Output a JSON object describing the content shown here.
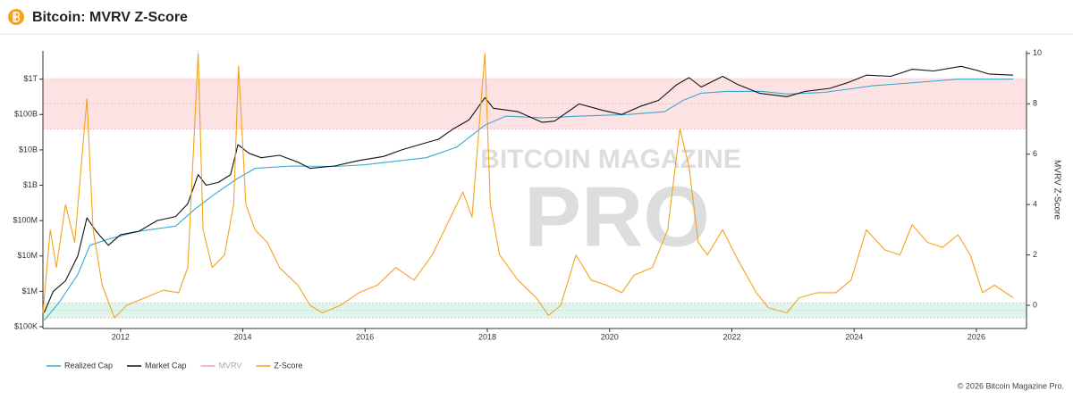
{
  "chart_data": {
    "type": "line",
    "title": "Bitcoin: MVRV Z-Score",
    "y2_label": "MVRV Z-Score",
    "watermark": [
      "BITCOIN MAGAZINE",
      "PRO"
    ],
    "footer": "© 2026 Bitcoin Magazine Pro.",
    "xlim": [
      2010.73,
      2026.82
    ],
    "xticks": [
      2012,
      2014,
      2016,
      2018,
      2020,
      2022,
      2024,
      2026
    ],
    "ylim": [
      89000,
      6300000000000
    ],
    "log_y": true,
    "yticks": [
      {
        "value": 100000,
        "label": "$100K"
      },
      {
        "value": 1000000,
        "label": "$1M"
      },
      {
        "value": 10000000,
        "label": "$10M"
      },
      {
        "value": 100000000,
        "label": "$100M"
      },
      {
        "value": 1000000000,
        "label": "$1B"
      },
      {
        "value": 10000000000,
        "label": "$10B"
      },
      {
        "value": 100000000000,
        "label": "$100B"
      },
      {
        "value": 1000000000000,
        "label": "$1T"
      }
    ],
    "y2lim": [
      -0.92,
      10.1
    ],
    "y2ticks": [
      0,
      2,
      4,
      6,
      8,
      10
    ],
    "bands": [
      {
        "axis": "y2",
        "from": 7,
        "to": 9,
        "color": "#fde2e4"
      },
      {
        "axis": "y2",
        "from": -0.5,
        "to": 0.1,
        "color": "#dff5ec"
      }
    ],
    "series": [
      {
        "name": "Realized Cap",
        "color": "#3aa8d0",
        "axis": "y",
        "x": [
          2010.75,
          2011.0,
          2011.3,
          2011.5,
          2011.8,
          2012.3,
          2012.9,
          2013.2,
          2013.5,
          2013.9,
          2014.2,
          2014.8,
          2015.5,
          2016.0,
          2016.6,
          2017.0,
          2017.5,
          2017.96,
          2018.3,
          2018.9,
          2019.5,
          2020.3,
          2020.9,
          2021.2,
          2021.5,
          2021.9,
          2022.5,
          2022.9,
          2023.5,
          2024.0,
          2024.3,
          2025.0,
          2025.7,
          2026.6
        ],
        "values": [
          150000,
          500000,
          3000000,
          20000000,
          30000000,
          50000000,
          70000000,
          200000000,
          500000000,
          1500000000,
          3000000000,
          3500000000,
          3400000000,
          3800000000,
          5000000000,
          6000000000,
          12000000000,
          50000000000,
          90000000000,
          80000000000,
          90000000000,
          100000000000,
          120000000000,
          250000000000,
          400000000000,
          450000000000,
          450000000000,
          380000000000,
          420000000000,
          550000000000,
          650000000000,
          800000000000,
          1000000000000,
          1000000000000
        ]
      },
      {
        "name": "Market Cap",
        "color": "#111111",
        "axis": "y",
        "x": [
          2010.75,
          2010.9,
          2011.1,
          2011.3,
          2011.45,
          2011.6,
          2011.8,
          2012.0,
          2012.3,
          2012.6,
          2012.9,
          2013.1,
          2013.27,
          2013.4,
          2013.6,
          2013.8,
          2013.92,
          2014.1,
          2014.3,
          2014.6,
          2014.9,
          2015.1,
          2015.5,
          2015.9,
          2016.3,
          2016.6,
          2016.95,
          2017.2,
          2017.45,
          2017.7,
          2017.96,
          2018.1,
          2018.5,
          2018.9,
          2019.1,
          2019.5,
          2019.9,
          2020.2,
          2020.5,
          2020.8,
          2021.1,
          2021.3,
          2021.5,
          2021.85,
          2022.1,
          2022.45,
          2022.9,
          2023.2,
          2023.6,
          2023.9,
          2024.2,
          2024.6,
          2024.95,
          2025.3,
          2025.75,
          2026.0,
          2026.2,
          2026.6
        ],
        "values": [
          250000,
          1000000,
          2000000,
          10000000,
          120000000,
          50000000,
          20000000,
          40000000,
          50000000,
          100000000,
          130000000,
          300000000,
          2000000000,
          1000000000,
          1200000000,
          2000000000,
          14000000000,
          8000000000,
          6000000000,
          7000000000,
          4500000000,
          3000000000,
          3500000000,
          5000000000,
          6500000000,
          10000000000,
          15000000000,
          20000000000,
          40000000000,
          70000000000,
          300000000000,
          150000000000,
          120000000000,
          60000000000,
          65000000000,
          200000000000,
          130000000000,
          100000000000,
          170000000000,
          250000000000,
          700000000000,
          1100000000000,
          600000000000,
          1200000000000,
          700000000000,
          400000000000,
          320000000000,
          450000000000,
          550000000000,
          800000000000,
          1300000000000,
          1200000000000,
          1900000000000,
          1700000000000,
          2300000000000,
          1800000000000,
          1400000000000,
          1300000000000
        ]
      },
      {
        "name": "MVRV",
        "color": "#f2a3a8",
        "visible": false
      },
      {
        "name": "Z-Score",
        "color": "#f4a21c",
        "axis": "y2",
        "x": [
          2010.73,
          2010.85,
          2010.95,
          2011.1,
          2011.25,
          2011.45,
          2011.55,
          2011.7,
          2011.9,
          2012.1,
          2012.4,
          2012.7,
          2012.95,
          2013.1,
          2013.27,
          2013.35,
          2013.5,
          2013.7,
          2013.85,
          2013.93,
          2014.05,
          2014.2,
          2014.4,
          2014.6,
          2014.9,
          2015.1,
          2015.3,
          2015.6,
          2015.9,
          2016.2,
          2016.5,
          2016.8,
          2017.1,
          2017.4,
          2017.6,
          2017.75,
          2017.96,
          2018.05,
          2018.2,
          2018.5,
          2018.8,
          2019.0,
          2019.2,
          2019.45,
          2019.7,
          2019.95,
          2020.2,
          2020.4,
          2020.7,
          2020.95,
          2021.15,
          2021.3,
          2021.45,
          2021.6,
          2021.85,
          2022.1,
          2022.4,
          2022.6,
          2022.9,
          2023.1,
          2023.4,
          2023.7,
          2023.95,
          2024.2,
          2024.5,
          2024.75,
          2024.95,
          2025.2,
          2025.45,
          2025.7,
          2025.9,
          2026.1,
          2026.3,
          2026.6
        ],
        "values": [
          -0.3,
          3,
          1.5,
          4,
          2.5,
          8.2,
          3,
          0.8,
          -0.5,
          0,
          0.3,
          0.6,
          0.5,
          1.5,
          10,
          3,
          1.5,
          2,
          4,
          9.5,
          4,
          3,
          2.5,
          1.5,
          0.8,
          0,
          -0.3,
          0,
          0.5,
          0.8,
          1.5,
          1,
          2,
          3.5,
          4.5,
          3.5,
          10,
          4,
          2,
          1,
          0.3,
          -0.4,
          0,
          2,
          1,
          0.8,
          0.5,
          1.2,
          1.5,
          3,
          7,
          5.5,
          2.5,
          2,
          3,
          1.8,
          0.5,
          -0.1,
          -0.3,
          0.3,
          0.5,
          0.5,
          1,
          3,
          2.2,
          2,
          3.2,
          2.5,
          2.3,
          2.8,
          2,
          0.5,
          0.8,
          0.3
        ]
      }
    ]
  }
}
